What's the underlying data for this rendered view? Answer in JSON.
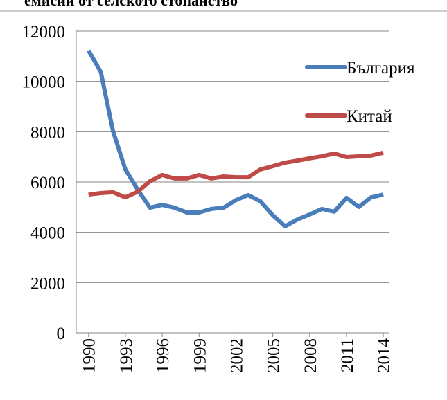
{
  "chart_data": {
    "type": "line",
    "title": "емисии от селското стопанство",
    "x": [
      1990,
      1991,
      1992,
      1993,
      1994,
      1995,
      1996,
      1997,
      1998,
      1999,
      2000,
      2001,
      2002,
      2003,
      2004,
      2005,
      2006,
      2007,
      2008,
      2009,
      2010,
      2011,
      2012,
      2013,
      2014
    ],
    "xlim": [
      1989,
      2014.5
    ],
    "xticks": [
      1990,
      1993,
      1996,
      1999,
      2002,
      2005,
      2008,
      2011,
      2014
    ],
    "ylim": [
      0,
      12000
    ],
    "yticks": [
      0,
      2000,
      4000,
      6000,
      8000,
      10000,
      12000
    ],
    "grid": true,
    "legend": "right",
    "series": [
      {
        "name": "България",
        "color": "#4a7ebb",
        "values": [
          11230,
          10380,
          8010,
          6500,
          5700,
          4980,
          5090,
          4980,
          4790,
          4790,
          4930,
          4980,
          5280,
          5480,
          5230,
          4680,
          4240,
          4510,
          4710,
          4930,
          4820,
          5370,
          5010,
          5390,
          5500
        ]
      },
      {
        "name": "Китай",
        "color": "#be4b48",
        "values": [
          5500,
          5560,
          5590,
          5390,
          5610,
          6030,
          6280,
          6140,
          6140,
          6280,
          6140,
          6220,
          6190,
          6190,
          6500,
          6630,
          6770,
          6850,
          6940,
          7020,
          7130,
          6990,
          7020,
          7050,
          7160
        ]
      }
    ]
  }
}
